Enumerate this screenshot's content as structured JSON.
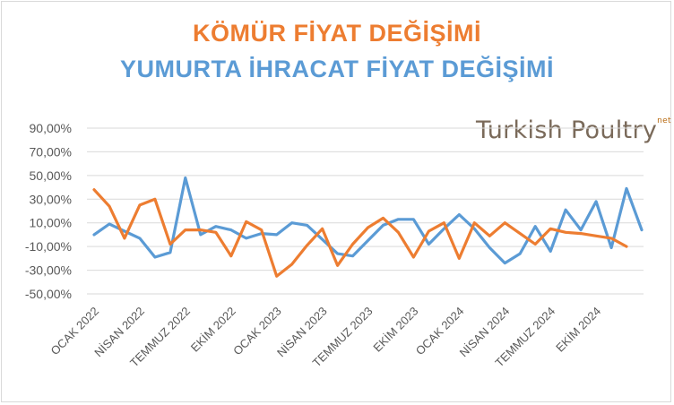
{
  "chart_data": {
    "type": "line",
    "title_line1": "KÖMÜR FİYAT DEĞİŞİMİ",
    "title_line2": "YUMURTA İHRACAT FİYAT DEĞİŞİMİ",
    "logo_text": "Turkish Poultry",
    "logo_suffix": "net",
    "ylim": [
      -50,
      90
    ],
    "y_ticks": [
      "90,00%",
      "70,00%",
      "50,00%",
      "30,00%",
      "10,00%",
      "-10,00%",
      "-30,00%",
      "-50,00%"
    ],
    "y_tick_values": [
      90,
      70,
      50,
      30,
      10,
      -10,
      -30,
      -50
    ],
    "x_tick_labels": [
      {
        "index": 0,
        "label": "OCAK 2022"
      },
      {
        "index": 3,
        "label": "NİSAN 2022"
      },
      {
        "index": 6,
        "label": "TEMMUZ 2022"
      },
      {
        "index": 9,
        "label": "EKİM 2022"
      },
      {
        "index": 12,
        "label": "OCAK 2023"
      },
      {
        "index": 15,
        "label": "NİSAN 2023"
      },
      {
        "index": 18,
        "label": "TEMMUZ 2023"
      },
      {
        "index": 21,
        "label": "EKİM 2023"
      },
      {
        "index": 24,
        "label": "OCAK 2024"
      },
      {
        "index": 27,
        "label": "NİSAN 2024"
      },
      {
        "index": 30,
        "label": "TEMMUZ 2024"
      },
      {
        "index": 33,
        "label": "EKİM 2024"
      }
    ],
    "grid": true,
    "series": [
      {
        "color": "#5b9bd5",
        "values": [
          0,
          9,
          3,
          -3,
          -19,
          -15,
          48,
          0,
          7,
          4,
          -3,
          1,
          0,
          10,
          8,
          -4,
          -16,
          -18,
          -5,
          8,
          13,
          13,
          -8,
          5,
          17,
          5,
          -11,
          -24,
          -16,
          7,
          -14,
          21,
          4,
          28,
          -11,
          39,
          4
        ]
      },
      {
        "color": "#ed7d31",
        "values": [
          38,
          24,
          -3,
          25,
          30,
          -8,
          4,
          4,
          2,
          -18,
          11,
          4,
          -35,
          -25,
          -9,
          5,
          -26,
          -8,
          6,
          14,
          2,
          -19,
          3,
          10,
          -20,
          10,
          -1,
          10,
          1,
          -8,
          5,
          2,
          1,
          -1,
          -3,
          -10
        ]
      }
    ]
  }
}
